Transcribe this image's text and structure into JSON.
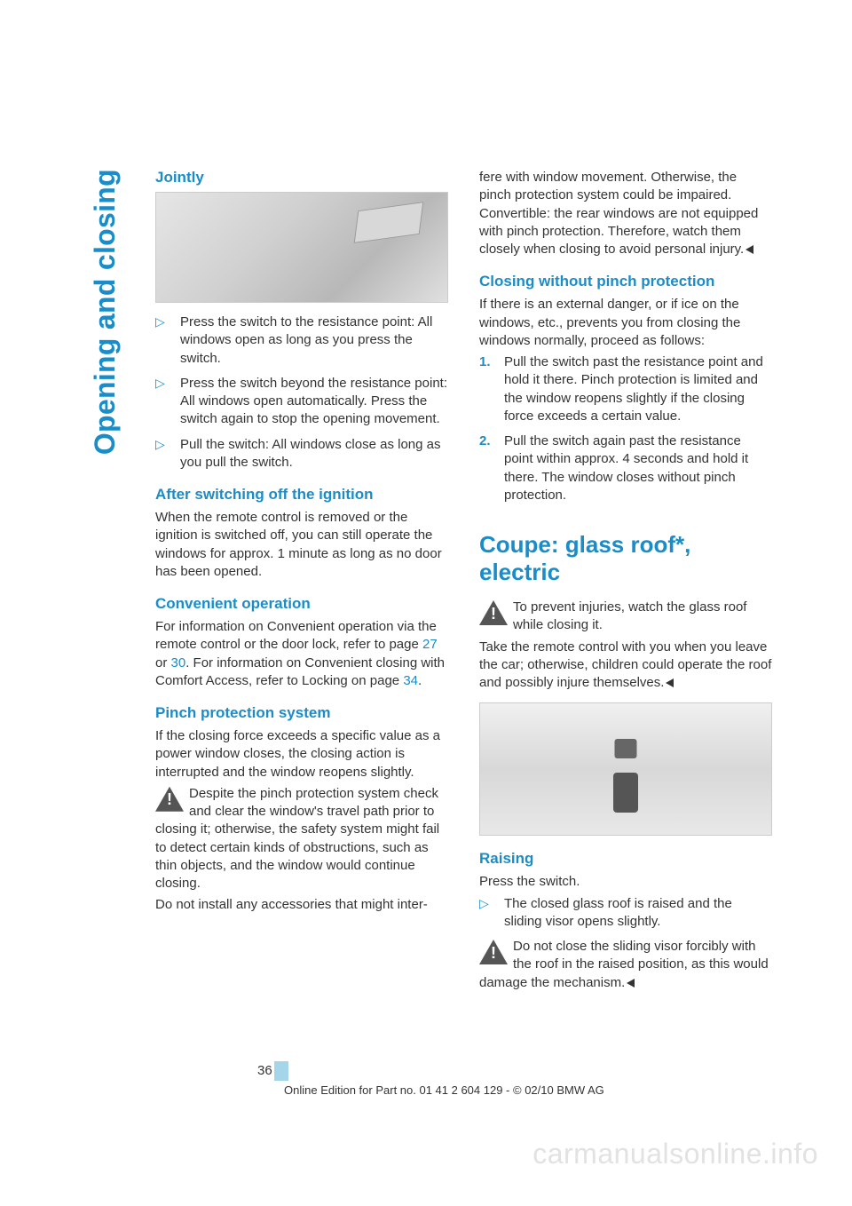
{
  "side_header": "Opening and closing",
  "left": {
    "jointly": {
      "heading": "Jointly",
      "items": [
        "Press the switch to the resistance point:\nAll windows open as long as you press the switch.",
        "Press the switch beyond the resistance point:\nAll windows open automatically. Press the switch again to stop the opening movement.",
        "Pull the switch:\nAll windows close as long as you pull the switch."
      ]
    },
    "after_ignition": {
      "heading": "After switching off the ignition",
      "text": "When the remote control is removed or the ignition is switched off, you can still operate the windows for approx. 1 minute as long as no door has been opened."
    },
    "convenient": {
      "heading": "Convenient operation",
      "text_pre": "For information on Convenient operation via the remote control or the door lock, refer to page ",
      "ref1": "27",
      "text_mid": " or ",
      "ref2": "30",
      "text_mid2": ". For information on Convenient closing with Comfort Access, refer to Locking on page ",
      "ref3": "34",
      "text_post": "."
    },
    "pinch": {
      "heading": "Pinch protection system",
      "text": "If the closing force exceeds a specific value as a power window closes, the closing action is interrupted and the window reopens slightly.",
      "warning1": "Despite the pinch protection system check and clear the window's travel path prior to closing it; otherwise, the safety system might fail to detect certain kinds of obstructions, such as thin objects, and the window would continue closing.",
      "warning2": "Do not install any accessories that might inter-"
    }
  },
  "right": {
    "continuation": "fere with window movement. Otherwise, the pinch protection system could be impaired. Convertible: the rear windows are not equipped with pinch protection. Therefore, watch them closely when closing to avoid personal injury.",
    "closing_without": {
      "heading": "Closing without pinch protection",
      "intro": "If there is an external danger, or if ice on the windows, etc., prevents you from closing the windows normally, proceed as follows:",
      "steps": [
        "Pull the switch past the resistance point and hold it there. Pinch protection is limited and the window reopens slightly if the closing force exceeds a certain value.",
        "Pull the switch again past the resistance point within approx. 4 seconds and hold it there. The window closes without pinch protection."
      ]
    },
    "coupe": {
      "heading": "Coupe: glass roof*, electric",
      "warning": "To prevent injuries, watch the glass roof while closing it.",
      "text": "Take the remote control with you when you leave the car; otherwise, children could operate the roof and possibly injure themselves."
    },
    "raising": {
      "heading": "Raising",
      "text": "Press the switch.",
      "item": "The closed glass roof is raised and the sliding visor opens slightly.",
      "warning": "Do not close the sliding visor forcibly with the roof in the raised position, as this would damage the mechanism."
    }
  },
  "page_number": "36",
  "footer": "Online Edition for Part no. 01 41 2 604 129 - © 02/10 BMW AG",
  "watermark": "carmanualsonline.info",
  "colors": {
    "accent": "#1a8cc8",
    "text": "#333333",
    "watermark": "#e2e2e2"
  }
}
